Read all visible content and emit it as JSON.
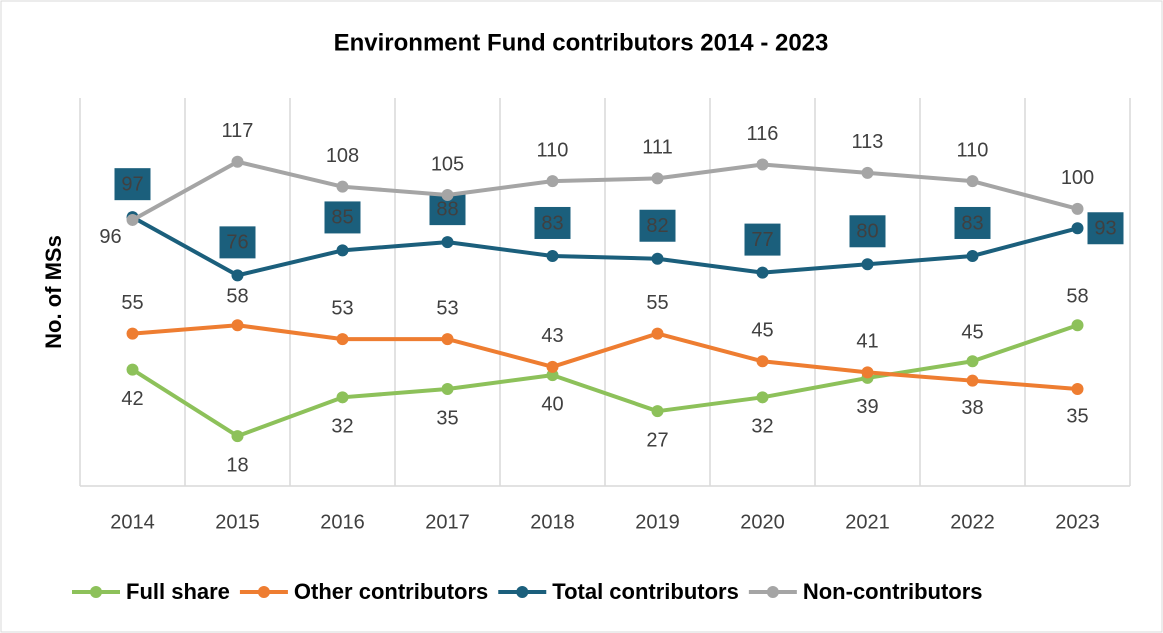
{
  "chart_data": {
    "type": "line",
    "title": "Environment Fund contributors 2014 - 2023",
    "y_label": "No. of MSs",
    "categories": [
      "2014",
      "2015",
      "2016",
      "2017",
      "2018",
      "2019",
      "2020",
      "2021",
      "2022",
      "2023"
    ],
    "ylim": [
      0,
      140
    ],
    "series": [
      {
        "name": "Full share",
        "color": "#8dc15a",
        "values": [
          42,
          18,
          32,
          35,
          40,
          27,
          32,
          39,
          45,
          58
        ]
      },
      {
        "name": "Other contributors",
        "color": "#ee7d31",
        "values": [
          55,
          58,
          53,
          53,
          43,
          55,
          45,
          41,
          38,
          35
        ]
      },
      {
        "name": "Total contributors",
        "color": "#1b5f7c",
        "values": [
          97,
          76,
          85,
          88,
          83,
          82,
          77,
          80,
          83,
          93
        ]
      },
      {
        "name": "Non-contributors",
        "color": "#a5a5a5",
        "values": [
          96,
          117,
          108,
          105,
          110,
          111,
          116,
          113,
          110,
          100
        ]
      }
    ],
    "grid": true,
    "legend": "bottom"
  }
}
